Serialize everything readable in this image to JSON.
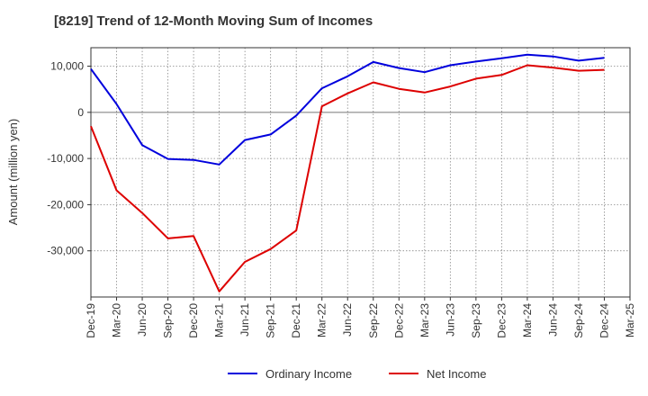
{
  "chart_data": {
    "type": "line",
    "title": "[8219]  Trend of 12-Month Moving Sum of Incomes",
    "ylabel": "Amount (million yen)",
    "xlabel": "",
    "ylim": [
      -40000,
      14000
    ],
    "y_ticks": [
      10000,
      0,
      -10000,
      -20000,
      -30000
    ],
    "y_tick_labels": [
      "10,000",
      "0",
      "-10,000",
      "-20,000",
      "-30,000"
    ],
    "x_tick_labels": [
      "Dec-19",
      "Mar-20",
      "Jun-20",
      "Sep-20",
      "Dec-20",
      "Mar-21",
      "Jun-21",
      "Sep-21",
      "Dec-21",
      "Mar-22",
      "Jun-22",
      "Sep-22",
      "Dec-22",
      "Mar-23",
      "Jun-23",
      "Sep-23",
      "Dec-23",
      "Mar-24",
      "Jun-24",
      "Sep-24",
      "Dec-24",
      "Mar-25"
    ],
    "series": [
      {
        "name": "Ordinary Income",
        "color": "#0000dd",
        "values": [
          9400,
          1800,
          -7100,
          -10100,
          -10300,
          -11300,
          -6000,
          -4800,
          -700,
          5200,
          7800,
          10900,
          9600,
          8700,
          10200,
          11000,
          11700,
          12500,
          12100,
          11200,
          11800
        ]
      },
      {
        "name": "Net Income",
        "color": "#dd0000",
        "values": [
          -3000,
          -16900,
          -21800,
          -27300,
          -26800,
          -38800,
          -32400,
          -29600,
          -25600,
          1300,
          4100,
          6500,
          5100,
          4300,
          5600,
          7300,
          8100,
          10200,
          9700,
          9000,
          9200
        ]
      }
    ],
    "legend": [
      "Ordinary Income",
      "Net Income"
    ],
    "grid": true,
    "legend_position": "bottom-center"
  }
}
